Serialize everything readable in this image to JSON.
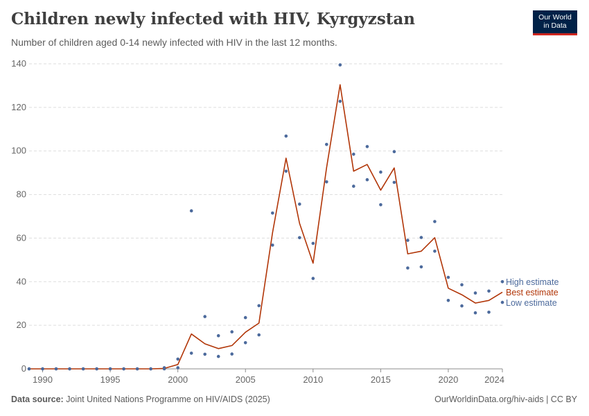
{
  "header": {
    "title": "Children newly infected with HIV, Kyrgyzstan",
    "subtitle": "Number of children aged 0-14 newly infected with HIV in the last 12 months."
  },
  "logo": {
    "line1": "Our World",
    "line2": "in Data"
  },
  "footer": {
    "source_label": "Data source:",
    "source_text": "Joint United Nations Programme on HIV/AIDS (2025)",
    "right_text": "OurWorldinData.org/hiv-aids | CC BY"
  },
  "colors": {
    "high": "#4c6a9c",
    "best": "#b13507",
    "low": "#4c6a9c",
    "grid": "#dddddd",
    "axis": "#8c8c8c"
  },
  "chart_data": {
    "type": "line",
    "title": "Children newly infected with HIV, Kyrgyzstan",
    "xlabel": "",
    "ylabel": "",
    "xlim": [
      1989,
      2024
    ],
    "ylim": [
      0,
      140
    ],
    "x_ticks": [
      1990,
      1995,
      2000,
      2005,
      2010,
      2015,
      2020,
      2024
    ],
    "y_ticks": [
      0,
      20,
      40,
      60,
      80,
      100,
      120,
      140
    ],
    "grid": true,
    "x": [
      1989,
      1990,
      1991,
      1992,
      1993,
      1994,
      1995,
      1996,
      1997,
      1998,
      1999,
      2000,
      2001,
      2002,
      2003,
      2004,
      2005,
      2006,
      2007,
      2008,
      2009,
      2010,
      2011,
      2012,
      2013,
      2014,
      2015,
      2016,
      2017,
      2018,
      2019,
      2020,
      2021,
      2022,
      2023,
      2024
    ],
    "series": [
      {
        "name": "High estimate",
        "style": "points",
        "values": [
          0,
          0,
          0,
          0,
          0,
          0,
          0,
          0,
          0,
          0,
          0.5,
          4.5,
          72.5,
          24,
          15.2,
          17,
          23.5,
          29,
          71.5,
          106.8,
          75.6,
          57.6,
          103,
          139.5,
          98.5,
          102,
          90.3,
          99.7,
          59,
          60.3,
          67.6,
          42,
          38.6,
          34.8,
          35.7,
          40
        ]
      },
      {
        "name": "Best estimate",
        "style": "line",
        "values": [
          0,
          0,
          0,
          0,
          0,
          0,
          0,
          0,
          0,
          0,
          0.2,
          2,
          16,
          11.5,
          9.3,
          10.7,
          16.8,
          21,
          62.5,
          96.7,
          66.8,
          48.5,
          92.3,
          130.4,
          90.7,
          93.8,
          82,
          92.2,
          52.8,
          54,
          60.2,
          37,
          34,
          30.2,
          31.4,
          35.2
        ]
      },
      {
        "name": "Low estimate",
        "style": "points",
        "values": [
          0,
          0,
          0,
          0,
          0,
          0,
          0,
          0,
          0,
          0,
          0,
          0.5,
          7.2,
          6.7,
          5.7,
          6.8,
          12,
          15.6,
          56.8,
          90.7,
          60.2,
          41.5,
          85.8,
          122.8,
          83.8,
          86.8,
          75.3,
          85.6,
          46.3,
          46.8,
          54,
          31.4,
          28.9,
          25.7,
          26,
          30.5
        ]
      }
    ],
    "legend": {
      "position": "right",
      "entries": [
        "High estimate",
        "Best estimate",
        "Low estimate"
      ]
    }
  }
}
